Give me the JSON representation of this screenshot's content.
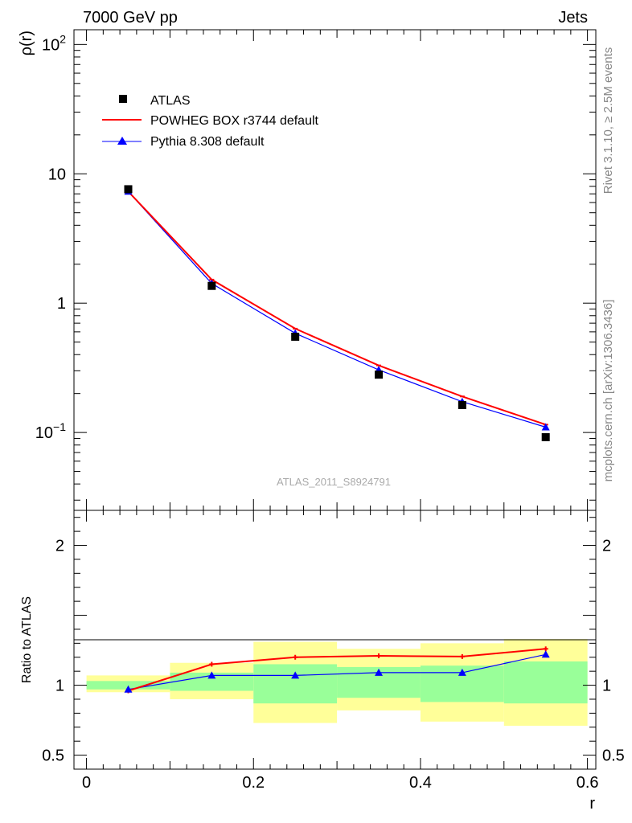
{
  "header": {
    "left_title": "7000 GeV pp",
    "right_title": "Jets"
  },
  "side_labels": {
    "rivet": "Rivet 3.1.10, ≥ 2.5M events",
    "source": "mcplots.cern.ch [arXiv:1306.3436]"
  },
  "analysis_id": "ATLAS_2011_S8924791",
  "colors": {
    "data": "#000000",
    "powheg": "#ff0000",
    "pythia": "#0000ff",
    "band_outer": "#ffff99",
    "band_inner": "#99ff99"
  },
  "chart_data": [
    {
      "type": "line",
      "panel": "main",
      "ylabel": "ρ(r)",
      "yscale": "log",
      "ylim": [
        0.025,
        130
      ],
      "xlim": [
        -0.015,
        0.61
      ],
      "y_ticks": [
        {
          "value": 100,
          "base": "10",
          "exp": "2"
        },
        {
          "value": 10,
          "base": "10",
          "exp": ""
        },
        {
          "value": 1,
          "base": "1",
          "exp": ""
        },
        {
          "value": 0.1,
          "base": "10",
          "exp": "−1"
        }
      ],
      "legend_placement": "top-left",
      "x": [
        0.05,
        0.15,
        0.25,
        0.35,
        0.45,
        0.55
      ],
      "series": [
        {
          "name": "ATLAS",
          "marker": "square",
          "values": [
            7.6,
            1.36,
            0.55,
            0.28,
            0.163,
            0.092
          ]
        },
        {
          "name": "POWHEG BOX r3744 default",
          "marker": "none",
          "values": [
            7.3,
            1.52,
            0.635,
            0.33,
            0.19,
            0.115
          ]
        },
        {
          "name": "Pythia 8.308 default",
          "marker": "triangle",
          "values": [
            7.3,
            1.42,
            0.585,
            0.305,
            0.173,
            0.11
          ]
        }
      ]
    },
    {
      "type": "line",
      "panel": "ratio",
      "xlabel": "r",
      "ylabel": "Ratio to ATLAS",
      "ylim": [
        0.4,
        2.25
      ],
      "xlim": [
        -0.015,
        0.61
      ],
      "x_ticks": [
        {
          "value": 0,
          "label": "0"
        },
        {
          "value": 0.2,
          "label": "0.2"
        },
        {
          "value": 0.4,
          "label": "0.4"
        },
        {
          "value": 0.6,
          "label": "0.6"
        }
      ],
      "y_ticks": [
        {
          "value": 0.5,
          "label": "0.5"
        },
        {
          "value": 1,
          "label": "1"
        },
        {
          "value": 2,
          "label": "2"
        }
      ],
      "bands": {
        "x_edges": [
          0.0,
          0.1,
          0.2,
          0.3,
          0.4,
          0.5,
          0.6
        ],
        "outer_low": [
          0.95,
          0.9,
          0.73,
          0.82,
          0.74,
          0.71
        ],
        "outer_high": [
          1.07,
          1.16,
          1.31,
          1.26,
          1.3,
          1.33
        ],
        "inner_low": [
          0.97,
          0.96,
          0.87,
          0.91,
          0.88,
          0.87
        ],
        "inner_high": [
          1.03,
          1.09,
          1.15,
          1.13,
          1.14,
          1.17
        ]
      },
      "x": [
        0.05,
        0.15,
        0.25,
        0.35,
        0.45,
        0.55
      ],
      "series": [
        {
          "name": "POWHEG BOX r3744 default",
          "values": [
            0.96,
            1.15,
            1.2,
            1.21,
            1.205,
            1.26
          ]
        },
        {
          "name": "Pythia 8.308 default",
          "values": [
            0.97,
            1.07,
            1.07,
            1.09,
            1.09,
            1.22
          ]
        }
      ]
    }
  ]
}
